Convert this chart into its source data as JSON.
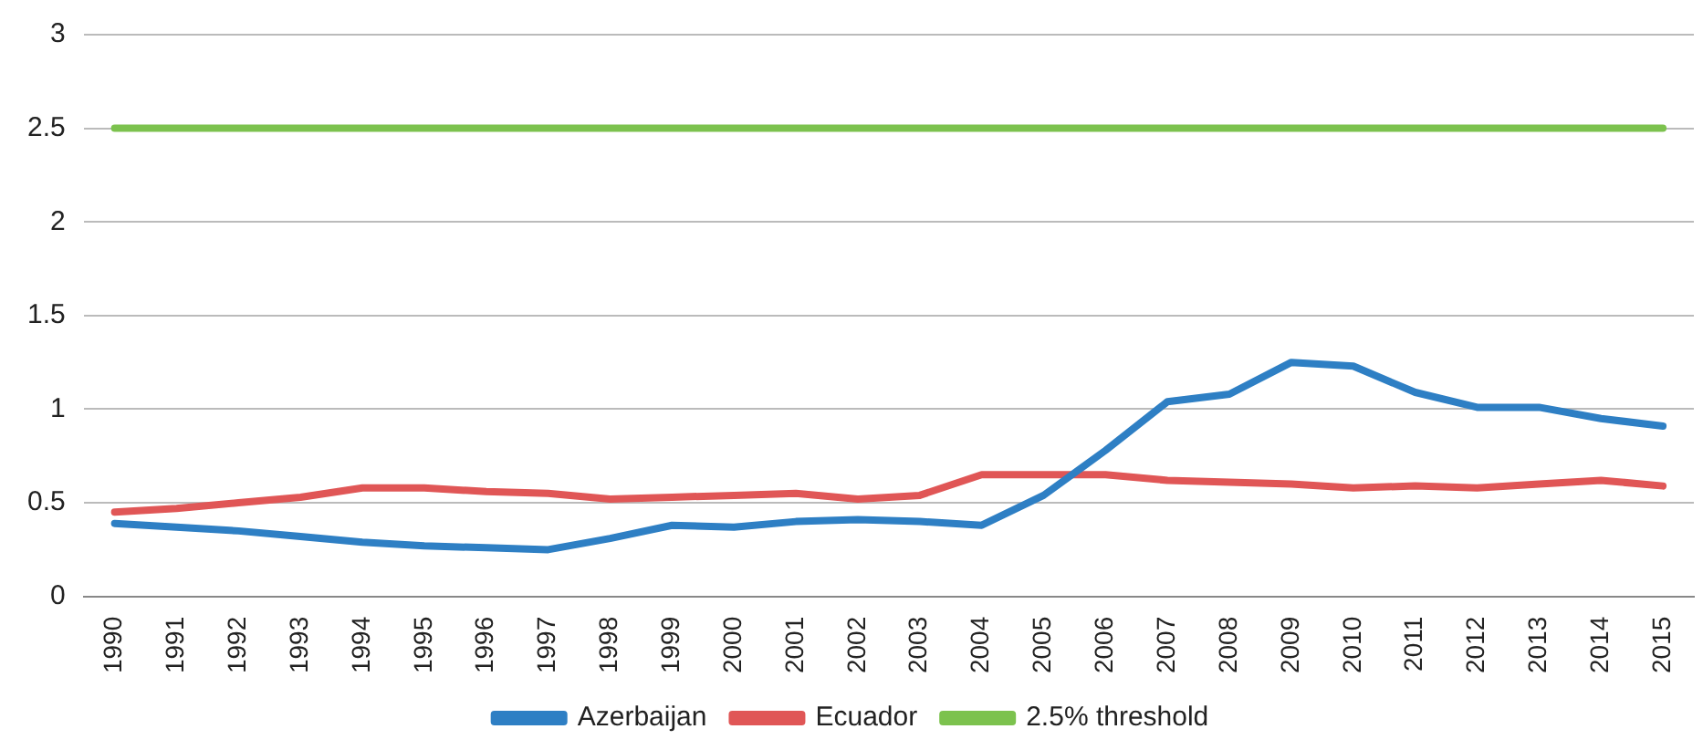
{
  "chart_data": {
    "type": "line",
    "categories": [
      "1990",
      "1991",
      "1992",
      "1993",
      "1994",
      "1995",
      "1996",
      "1997",
      "1998",
      "1999",
      "2000",
      "2001",
      "2002",
      "2003",
      "2004",
      "2005",
      "2006",
      "2007",
      "2008",
      "2009",
      "2010",
      "2011",
      "2012",
      "2013",
      "2014",
      "2015"
    ],
    "series": [
      {
        "name": "Azerbaijan",
        "color": "#2e7fc4",
        "values": [
          0.39,
          0.37,
          0.35,
          0.32,
          0.29,
          0.27,
          0.26,
          0.25,
          0.31,
          0.38,
          0.37,
          0.4,
          0.41,
          0.4,
          0.38,
          0.54,
          0.78,
          1.04,
          1.08,
          1.25,
          1.23,
          1.09,
          1.01,
          1.01,
          0.95,
          0.91
        ]
      },
      {
        "name": "Ecuador",
        "color": "#e05656",
        "values": [
          0.45,
          0.47,
          0.5,
          0.53,
          0.58,
          0.58,
          0.56,
          0.55,
          0.52,
          0.53,
          0.54,
          0.55,
          0.52,
          0.54,
          0.65,
          0.65,
          0.65,
          0.62,
          0.61,
          0.6,
          0.58,
          0.59,
          0.58,
          0.6,
          0.62,
          0.59
        ]
      },
      {
        "name": "2.5% threshold",
        "color": "#7cc24e",
        "values": [
          2.5,
          2.5,
          2.5,
          2.5,
          2.5,
          2.5,
          2.5,
          2.5,
          2.5,
          2.5,
          2.5,
          2.5,
          2.5,
          2.5,
          2.5,
          2.5,
          2.5,
          2.5,
          2.5,
          2.5,
          2.5,
          2.5,
          2.5,
          2.5,
          2.5,
          2.5
        ]
      }
    ],
    "ylim": [
      0,
      3
    ],
    "yticks": [
      0,
      0.5,
      1,
      1.5,
      2,
      2.5,
      3
    ],
    "grid": "y",
    "legend": "bottom",
    "marker": "none",
    "line_style": "solid"
  }
}
